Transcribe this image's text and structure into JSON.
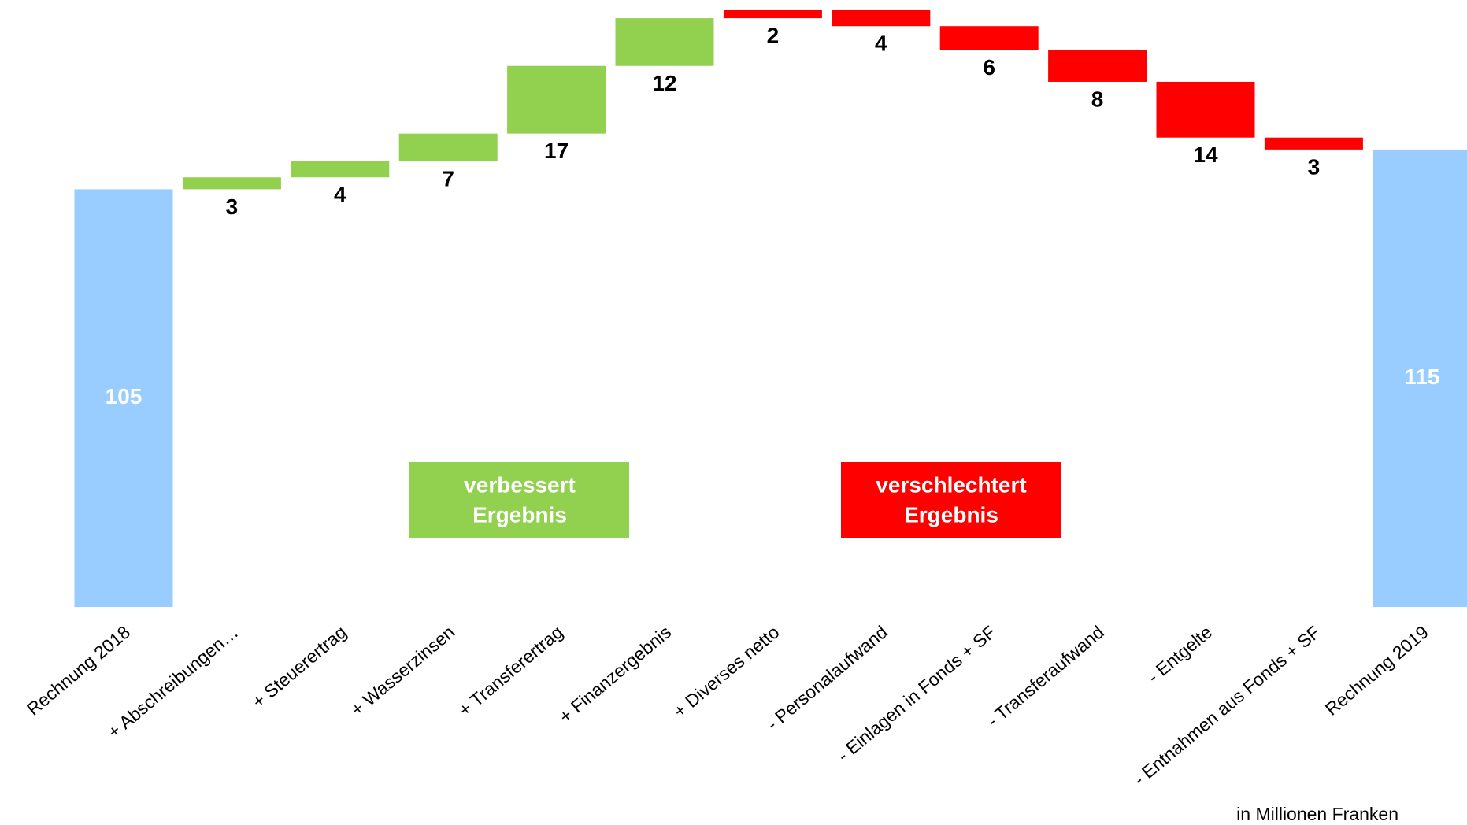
{
  "chart_data": {
    "type": "waterfall",
    "categories": [
      "Rechnung 2018",
      "+ Abschreibungen…",
      "+ Steuerertrag",
      "+ Wasserzinsen",
      "+ Transferertrag",
      "+ Finanzergebnis",
      "+ Diverses netto",
      "- Personalaufwand",
      "- Einlagen in Fonds + SF",
      "- Transferaufwand",
      "- Entgelte",
      "- Entnahmen aus Fonds + SF",
      "Rechnung 2019"
    ],
    "measure": [
      "absolute",
      "relative",
      "relative",
      "relative",
      "relative",
      "relative",
      "relative",
      "relative",
      "relative",
      "relative",
      "relative",
      "relative",
      "absolute"
    ],
    "values": [
      105,
      3,
      4,
      7,
      17,
      12,
      2,
      -4,
      -6,
      -8,
      -14,
      -3,
      115
    ],
    "value_labels": [
      "105",
      "3",
      "4",
      "7",
      "17",
      "12",
      "2",
      "4",
      "6",
      "8",
      "14",
      "3",
      "115"
    ],
    "colors": [
      "#99ccff",
      "#92d050",
      "#92d050",
      "#92d050",
      "#92d050",
      "#92d050",
      "#ff0000",
      "#ff0000",
      "#ff0000",
      "#ff0000",
      "#ff0000",
      "#ff0000",
      "#99ccff"
    ],
    "ylim": [
      0,
      150
    ],
    "legend": [
      {
        "lines": [
          "verbessert",
          "Ergebnis"
        ],
        "color": "#92d050"
      },
      {
        "lines": [
          "verschlechtert",
          "Ergebnis"
        ],
        "color": "#ff0000"
      }
    ],
    "note": "in Millionen Franken"
  }
}
